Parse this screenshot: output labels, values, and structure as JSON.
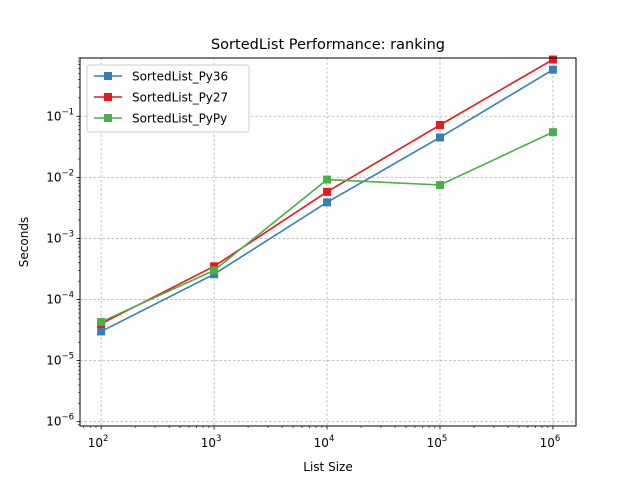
{
  "chart_data": {
    "type": "line",
    "title": "SortedList Performance: ranking",
    "xlabel": "List Size",
    "ylabel": "Seconds",
    "x_scale": "log",
    "y_scale": "log",
    "x": [
      100,
      1000,
      10000,
      100000,
      1000000
    ],
    "x_tick_labels": [
      {
        "value": 100,
        "base": "10",
        "exp": "2"
      },
      {
        "value": 1000,
        "base": "10",
        "exp": "3"
      },
      {
        "value": 10000,
        "base": "10",
        "exp": "4"
      },
      {
        "value": 100000,
        "base": "10",
        "exp": "5"
      },
      {
        "value": 1000000,
        "base": "10",
        "exp": "6"
      }
    ],
    "y_tick_labels": [
      {
        "value": 1e-06,
        "base": "10",
        "exp": "−6"
      },
      {
        "value": 1e-05,
        "base": "10",
        "exp": "−5"
      },
      {
        "value": 0.0001,
        "base": "10",
        "exp": "−4"
      },
      {
        "value": 0.001,
        "base": "10",
        "exp": "−3"
      },
      {
        "value": 0.01,
        "base": "10",
        "exp": "−2"
      },
      {
        "value": 0.1,
        "base": "10",
        "exp": "−1"
      }
    ],
    "xlim": [
      65,
      1600000
    ],
    "ylim": [
      8.5e-07,
      0.9
    ],
    "grid": true,
    "legend_position": "upper-left",
    "series": [
      {
        "name": "SortedList_Py36",
        "color": "#377eb8",
        "marker": "square",
        "values": [
          3e-05,
          0.00026,
          0.0039,
          0.045,
          0.58
        ]
      },
      {
        "name": "SortedList_Py27",
        "color": "#e41a1c",
        "marker": "square",
        "values": [
          4e-05,
          0.00035,
          0.0058,
          0.072,
          0.85
        ]
      },
      {
        "name": "SortedList_PyPy",
        "color": "#4daf4a",
        "marker": "square",
        "values": [
          4.3e-05,
          0.0003,
          0.0092,
          0.0075,
          0.055
        ]
      }
    ]
  }
}
